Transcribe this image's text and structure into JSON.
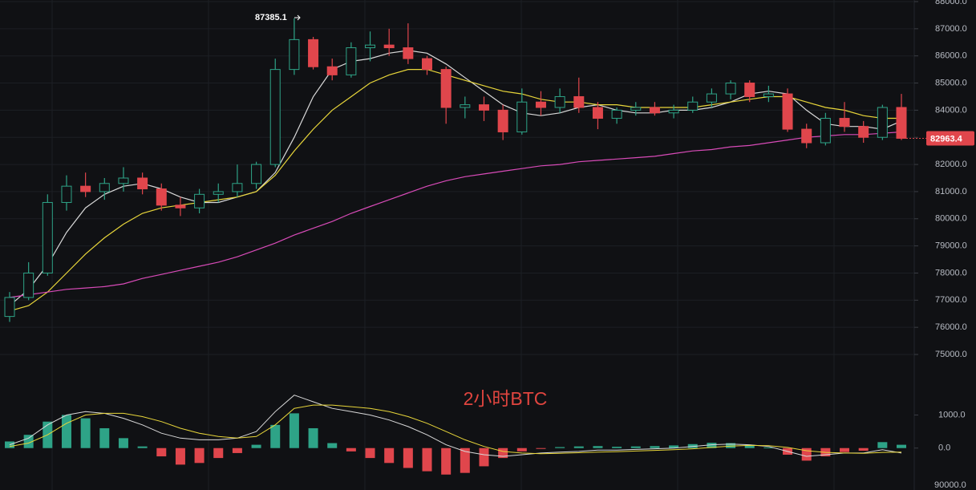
{
  "chart_data": {
    "type": "candlestick",
    "title": "2小时BTC",
    "open": [
      76400,
      77100,
      78000,
      80600,
      81200,
      81000,
      81300,
      81500,
      81100,
      80500,
      80400,
      80900,
      81000,
      81300,
      82000,
      85500,
      86600,
      85600,
      85300,
      86300,
      86400,
      86300,
      85900,
      85500,
      84100,
      84200,
      84000,
      83200,
      84300,
      84100,
      84500,
      84100,
      83700,
      84000,
      84100,
      83900,
      84000,
      84300,
      84600,
      85000,
      84500,
      84600,
      83300,
      82800,
      83700,
      83400,
      83000,
      84100
    ],
    "high": [
      77300,
      78400,
      80900,
      81600,
      81700,
      81500,
      81900,
      81700,
      81300,
      80800,
      81100,
      81300,
      82000,
      82100,
      85900,
      87385.1,
      86700,
      85900,
      86500,
      86900,
      87000,
      87200,
      86000,
      85600,
      84500,
      84500,
      84200,
      84800,
      84700,
      84800,
      85200,
      84300,
      84100,
      84300,
      84300,
      84200,
      84500,
      84800,
      85100,
      85100,
      84900,
      84800,
      83500,
      83900,
      84300,
      83600,
      84200,
      84600
    ],
    "low": [
      76200,
      77000,
      77900,
      80300,
      80800,
      80700,
      81000,
      80900,
      80300,
      80100,
      80200,
      80600,
      80800,
      81100,
      81900,
      85300,
      85500,
      85100,
      85200,
      85800,
      86000,
      85700,
      85300,
      83500,
      83700,
      83600,
      82900,
      83100,
      83800,
      83900,
      83900,
      83300,
      83500,
      83800,
      83800,
      83700,
      83900,
      84100,
      84400,
      84300,
      84300,
      83200,
      82600,
      82700,
      83200,
      82800,
      82900,
      82900
    ],
    "close": [
      77100,
      78000,
      80600,
      81200,
      81000,
      81300,
      81500,
      81100,
      80500,
      80400,
      80900,
      81000,
      81300,
      82000,
      85500,
      86600,
      85600,
      85300,
      86300,
      86400,
      86300,
      85900,
      85500,
      84100,
      84200,
      84000,
      83200,
      84300,
      84100,
      84500,
      84100,
      83700,
      84000,
      84100,
      83900,
      84000,
      84300,
      84600,
      85000,
      84500,
      84600,
      83300,
      82800,
      83700,
      83400,
      83000,
      84100,
      82963.4
    ],
    "up_color": "#2ea387",
    "down_color": "#e0464c",
    "series": [
      {
        "color": "#d9d9d9",
        "values": [
          76800,
          77400,
          78300,
          79500,
          80400,
          80900,
          81200,
          81300,
          81100,
          80800,
          80600,
          80600,
          80800,
          81000,
          81700,
          83000,
          84500,
          85500,
          85800,
          85900,
          86100,
          86200,
          86100,
          85700,
          85200,
          84700,
          84200,
          83900,
          83800,
          83900,
          84100,
          84200,
          84000,
          83900,
          83900,
          84000,
          84000,
          84100,
          84300,
          84600,
          84700,
          84600,
          84000,
          83500,
          83400,
          83400,
          83300,
          83600
        ]
      },
      {
        "color": "#e8d63a",
        "values": [
          76600,
          76800,
          77300,
          78000,
          78700,
          79300,
          79800,
          80200,
          80400,
          80500,
          80600,
          80700,
          80800,
          81000,
          81600,
          82500,
          83300,
          84000,
          84500,
          85000,
          85300,
          85500,
          85500,
          85300,
          85100,
          84900,
          84700,
          84600,
          84400,
          84300,
          84300,
          84200,
          84200,
          84100,
          84100,
          84100,
          84100,
          84200,
          84300,
          84400,
          84500,
          84500,
          84300,
          84100,
          84000,
          83800,
          83700,
          83700
        ]
      },
      {
        "color": "#d84bb8",
        "values": [
          77100,
          77200,
          77300,
          77400,
          77450,
          77500,
          77600,
          77800,
          77950,
          78100,
          78250,
          78400,
          78600,
          78850,
          79100,
          79400,
          79650,
          79900,
          80200,
          80450,
          80700,
          80950,
          81200,
          81400,
          81550,
          81650,
          81750,
          81850,
          81950,
          82000,
          82100,
          82150,
          82200,
          82250,
          82300,
          82400,
          82500,
          82550,
          82650,
          82700,
          82800,
          82900,
          83000,
          83050,
          83100,
          83100,
          83150,
          83200
        ]
      }
    ],
    "ylim": [
      75000,
      88000
    ],
    "yticks": [
      {
        "value": 75000,
        "label": "75000.0"
      },
      {
        "value": 76000,
        "label": "76000.0"
      },
      {
        "value": 77000,
        "label": "77000.0"
      },
      {
        "value": 78000,
        "label": "78000.0"
      },
      {
        "value": 79000,
        "label": "79000.0"
      },
      {
        "value": 80000,
        "label": "80000.0"
      },
      {
        "value": 81000,
        "label": "81000.0"
      },
      {
        "value": 82000,
        "label": "82000.0"
      },
      {
        "value": 83000,
        "label": "83000.0"
      },
      {
        "value": 84000,
        "label": "84000.0"
      },
      {
        "value": 85000,
        "label": "85000.0"
      },
      {
        "value": 86000,
        "label": "86000.0"
      },
      {
        "value": 87000,
        "label": "87000.0"
      },
      {
        "value": 88000,
        "label": "88000.0"
      }
    ],
    "grid": true,
    "max_high": 87385.1,
    "last_price": 82963.4,
    "last_price_color": "#e0464c",
    "macd": {
      "histogram": [
        200,
        400,
        800,
        1000,
        900,
        600,
        300,
        50,
        -250,
        -500,
        -450,
        -300,
        -150,
        100,
        700,
        1050,
        600,
        150,
        -100,
        -300,
        -450,
        -600,
        -700,
        -800,
        -750,
        -550,
        -300,
        -100,
        -20,
        30,
        50,
        60,
        40,
        50,
        60,
        80,
        120,
        160,
        150,
        100,
        20,
        -200,
        -380,
        -250,
        -120,
        -80,
        180,
        100
      ],
      "dif": [
        100,
        300,
        700,
        1000,
        1100,
        1050,
        900,
        700,
        450,
        300,
        250,
        250,
        300,
        500,
        1100,
        1600,
        1400,
        1200,
        1100,
        1000,
        850,
        650,
        400,
        100,
        -100,
        -200,
        -250,
        -200,
        -150,
        -120,
        -100,
        -60,
        -60,
        -40,
        -20,
        0,
        50,
        100,
        120,
        100,
        50,
        -100,
        -250,
        -200,
        -150,
        -150,
        -50,
        -150
      ],
      "dea": [
        50,
        150,
        400,
        750,
        1000,
        1050,
        1050,
        950,
        800,
        600,
        450,
        350,
        300,
        350,
        700,
        1200,
        1300,
        1300,
        1250,
        1200,
        1100,
        950,
        750,
        500,
        250,
        50,
        -100,
        -150,
        -170,
        -160,
        -140,
        -120,
        -110,
        -90,
        -70,
        -50,
        -20,
        20,
        60,
        80,
        70,
        20,
        -80,
        -130,
        -150,
        -160,
        -130,
        -120
      ],
      "dif_color": "#d9d9d9",
      "dea_color": "#e8d63a",
      "ylim": [
        -1000,
        2150
      ],
      "yticks": [
        {
          "value": 0,
          "label": "0.0"
        },
        {
          "value": 1000,
          "label": "1000.0"
        }
      ],
      "axis_cut_label": "90000.0"
    }
  }
}
